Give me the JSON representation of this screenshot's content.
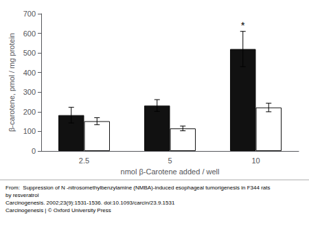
{
  "chart_data": {
    "type": "bar",
    "categories": [
      "2.5",
      "5",
      "10"
    ],
    "series": [
      {
        "color": "#111111",
        "values": [
          183,
          232,
          520
        ],
        "errors": [
          40,
          30,
          90
        ],
        "annotations": [
          {
            "text": "*",
            "category": "10",
            "y": 615
          }
        ]
      },
      {
        "color": "#ffffff",
        "values": [
          152,
          115,
          222
        ],
        "errors": [
          18,
          12,
          22
        ]
      }
    ],
    "xlabel": "nmol β-Carotene added / well",
    "ylabel": "β-carotene, pmol / mg protein",
    "ylim": [
      0,
      700
    ],
    "yticks": [
      0,
      100,
      200,
      300,
      400,
      500,
      600,
      700
    ],
    "grid": false,
    "caption": [
      "From:  Suppression of N -nitrosomethylbenzylamine (NMBA)-induced esophageal tumorigenesis in F344 rats",
      "by resveratrol",
      "Carcinogenesis. 2002;23(9):1531-1536. doi:10.1093/carcin/23.9.1531",
      "Carcinogenesis | © Oxford University Press"
    ]
  }
}
